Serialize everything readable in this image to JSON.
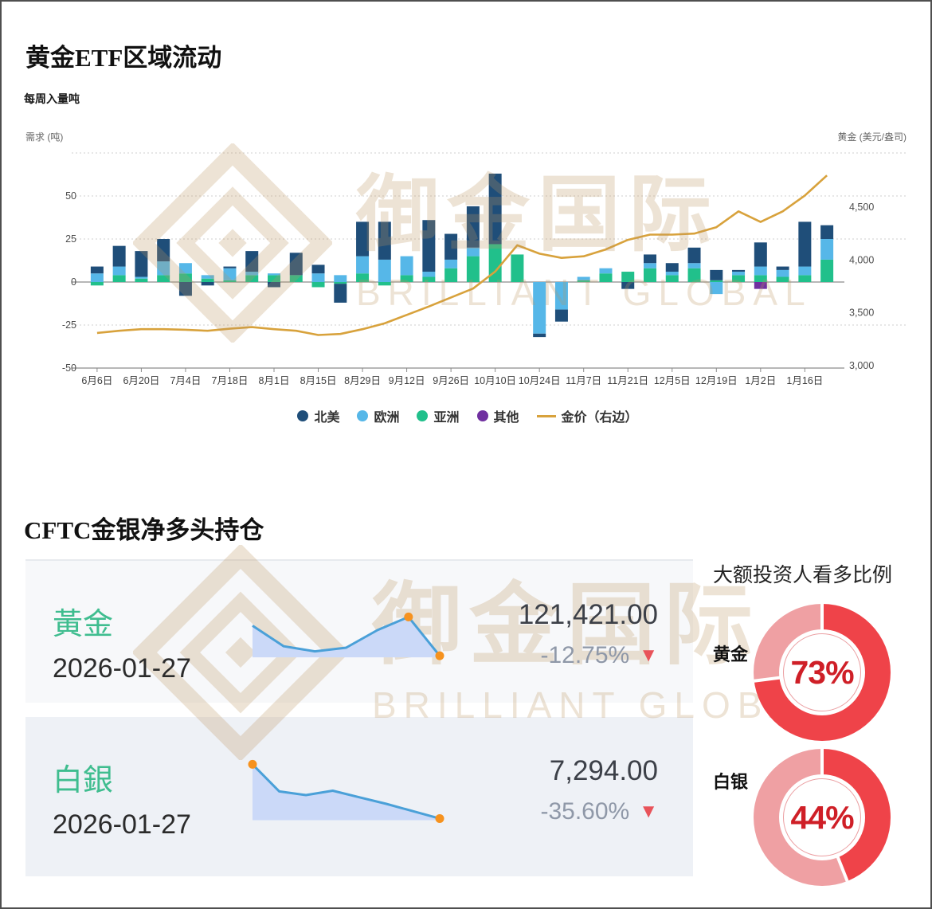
{
  "page": {
    "border_color": "#4f4f4f",
    "background": "#ffffff"
  },
  "section1": {
    "title": "黄金ETF区域流动",
    "subtitle": "每周入量吨"
  },
  "chart_data": {
    "type": "stacked_bar_with_line",
    "x": [
      "6月6日",
      "6月13日",
      "6月20日",
      "6月27日",
      "7月4日",
      "7月11日",
      "7月18日",
      "7月25日",
      "8月1日",
      "8月8日",
      "8月15日",
      "8月22日",
      "8月29日",
      "9月5日",
      "9月12日",
      "9月19日",
      "9月26日",
      "10月3日",
      "10月10日",
      "10月17日",
      "10月24日",
      "10月31日",
      "11月7日",
      "11月14日",
      "11月21日",
      "11月28日",
      "12月5日",
      "12月12日",
      "12月19日",
      "12月26日",
      "1月2日",
      "1月9日",
      "1月16日",
      "1月23日"
    ],
    "x_tick_labels": [
      "6月6日",
      "6月20日",
      "7月4日",
      "7月18日",
      "8月1日",
      "8月15日",
      "8月29日",
      "9月12日",
      "9月26日",
      "10月10日",
      "10月24日",
      "11月7日",
      "11月21日",
      "12月5日",
      "12月19日",
      "1月2日",
      "1月16日"
    ],
    "left_axis": {
      "label": "需求 (吨)",
      "ticks": [
        50,
        25,
        0,
        -25,
        -50
      ],
      "range": [
        -50,
        75
      ]
    },
    "right_axis": {
      "label": "黄金 (美元/盎司)",
      "ticks": [
        {
          "label": "4,500",
          "value": 4500
        },
        {
          "label": "4,000",
          "value": 4000
        },
        {
          "label": "3,500",
          "value": 3500
        },
        {
          "label": "3,000",
          "value": 3000
        }
      ],
      "range": [
        3000,
        4800
      ]
    },
    "grid": "dotted-horizontal",
    "legend_position": "bottom-center",
    "series": [
      {
        "name": "北美",
        "type": "bar",
        "color": "#1f4e79",
        "values": [
          4,
          12,
          15,
          13,
          -8,
          -2,
          1,
          12,
          -3,
          13,
          5,
          -11,
          20,
          22,
          0,
          30,
          15,
          24,
          41,
          0,
          -2,
          -7,
          0,
          0,
          -4,
          5,
          5,
          9,
          6,
          1,
          14,
          2,
          26,
          8
        ]
      },
      {
        "name": "欧洲",
        "type": "bar",
        "color": "#56b7e8",
        "values": [
          5,
          5,
          1,
          8,
          6,
          2,
          7,
          2,
          1,
          0,
          5,
          4,
          10,
          13,
          11,
          3,
          5,
          5,
          0,
          0,
          -30,
          -16,
          2,
          3,
          0,
          3,
          2,
          3,
          -7,
          2,
          5,
          4,
          5,
          12
        ]
      },
      {
        "name": "亚洲",
        "type": "bar",
        "color": "#21c08b",
        "values": [
          -2,
          4,
          2,
          4,
          5,
          2,
          1,
          4,
          4,
          4,
          -3,
          -1,
          5,
          -2,
          4,
          3,
          8,
          15,
          22,
          16,
          0,
          0,
          1,
          5,
          6,
          8,
          4,
          8,
          1,
          4,
          4,
          3,
          4,
          13
        ]
      },
      {
        "name": "其他",
        "type": "bar",
        "color": "#7030a0",
        "values": [
          0,
          0,
          0,
          0,
          0,
          0,
          0,
          0,
          0,
          0,
          0,
          0,
          0,
          0,
          0,
          0,
          0,
          0,
          0,
          0,
          0,
          0,
          0,
          0,
          0,
          0,
          0,
          0,
          0,
          0,
          -4,
          0,
          0,
          0
        ]
      },
      {
        "name": "金价（右边）",
        "type": "line",
        "axis": "right",
        "color": "#d8a23c",
        "values": [
          3310,
          3330,
          3345,
          3345,
          3340,
          3330,
          3350,
          3365,
          3345,
          3330,
          3290,
          3300,
          3345,
          3400,
          3480,
          3560,
          3645,
          3730,
          3890,
          4140,
          4060,
          4020,
          4035,
          4100,
          4190,
          4240,
          4240,
          4250,
          4310,
          4460,
          4360,
          4460,
          4610,
          4800
        ]
      }
    ]
  },
  "section2": {
    "title": "CFTC金银净多头持仓",
    "cards": [
      {
        "name": "黃金",
        "date": "2026-01-27",
        "value": "121,421.00",
        "change": "-12.75%",
        "direction": "down",
        "spark": {
          "values": [
            68,
            40,
            33,
            38,
            62,
            80,
            27
          ],
          "dots": [
            5,
            6
          ]
        }
      },
      {
        "name": "白銀",
        "date": "2026-01-27",
        "value": "7,294.00",
        "change": "-35.60%",
        "direction": "down",
        "spark": {
          "values": [
            92,
            55,
            50,
            56,
            47,
            38,
            28,
            18
          ],
          "dots": [
            0,
            7
          ]
        }
      }
    ],
    "right_panel": {
      "title": "大额投资人看多比例",
      "donuts": [
        {
          "label": "黄金",
          "percent": 73,
          "display": "73%"
        },
        {
          "label": "白银",
          "percent": 44,
          "display": "44%"
        }
      ]
    }
  },
  "icons": {
    "down_triangle": "▼"
  },
  "colors": {
    "name_green": "#3fbd8f",
    "value_dark": "#3c4048",
    "change_gray": "#8f98a8",
    "tri_red": "#e8535a",
    "spark_line": "#4aa0d8",
    "spark_fill": "#cbd9f8",
    "spark_dot": "#f6921e",
    "donut_red": "#ef4349",
    "donut_pink": "#efa0a3",
    "percent_red": "#cf1f27",
    "watermark_tan": "#bd9560"
  },
  "watermark": {
    "cjk": "御金国际",
    "latin": "BRILLIANT GLOBAL"
  }
}
